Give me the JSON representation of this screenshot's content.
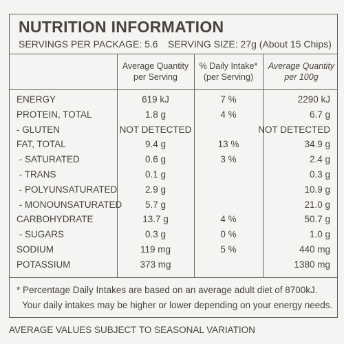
{
  "header": {
    "title": "NUTRITION INFORMATION",
    "servings": "SERVINGS PER PACKAGE: 5.6",
    "serving_size": "SERVING SIZE: 27g (About 15 Chips)"
  },
  "table": {
    "columns": [
      "Average Quantity per Serving",
      "% Daily Intake* (per Serving)",
      "Average Quantity per 100g"
    ],
    "rows": [
      {
        "name": "ENERGY",
        "serving": "619 kJ",
        "di": "7 %",
        "per100": "2290 kJ"
      },
      {
        "name": "PROTEIN, TOTAL",
        "serving": "1.8 g",
        "di": "4 %",
        "per100": "6.7 g"
      },
      {
        "name": "- GLUTEN",
        "serving": "NOT DETECTED",
        "per100": "NOT DETECTED"
      },
      {
        "name": "FAT, TOTAL",
        "serving": "9.4 g",
        "di": "13 %",
        "per100": "34.9 g"
      },
      {
        "name": " - SATURATED",
        "serving": "0.6 g",
        "di": "3 %",
        "per100": "2.4 g"
      },
      {
        "name": " - TRANS",
        "serving": "0.1 g",
        "per100": "0.3 g"
      },
      {
        "name": " - POLYUNSATURATED",
        "serving": "2.9 g",
        "per100": "10.9 g"
      },
      {
        "name": " - MONOUNSATURATED",
        "serving": "5.7 g",
        "per100": "21.0 g"
      },
      {
        "name": "CARBOHYDRATE",
        "serving": "13.7 g",
        "di": "4 %",
        "per100": "50.7 g"
      },
      {
        "name": " - SUGARS",
        "serving": "0.3 g",
        "di": "0 %",
        "per100": "1.0 g"
      },
      {
        "name": "SODIUM",
        "serving": "119 mg",
        "di": "5 %",
        "per100": "440 mg"
      },
      {
        "name": "POTASSIUM",
        "serving": "373 mg",
        "per100": "1380 mg"
      }
    ]
  },
  "footnote": [
    "* Percentage Daily Intakes are based on an average adult diet of 8700kJ.",
    "Your daily intakes may be higher or lower depending on your energy needs."
  ],
  "bottom": "AVERAGE VALUES SUBJECT TO SEASONAL VARIATION"
}
